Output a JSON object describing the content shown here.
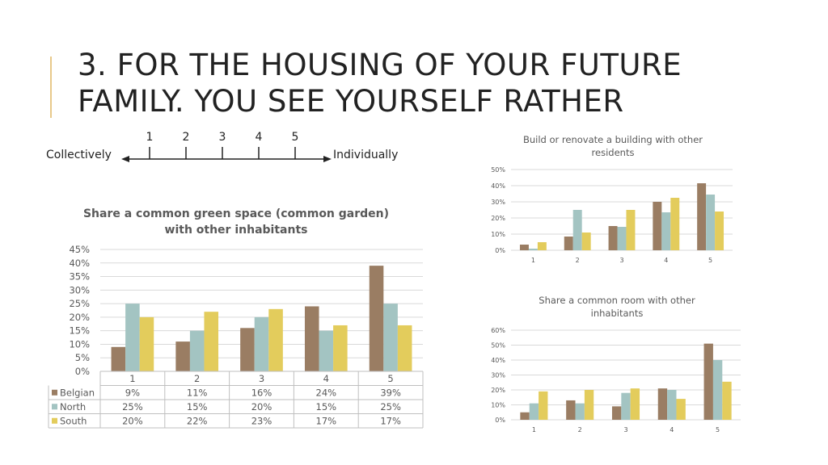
{
  "slide": {
    "title_line1": "3. FOR THE HOUSING OF YOUR FUTURE",
    "title_line2": "FAMILY. YOU SEE YOURSELF RATHER"
  },
  "scale": {
    "left_label": "Collectively",
    "right_label": "Individually",
    "ticks": [
      "1",
      "2",
      "3",
      "4",
      "5"
    ]
  },
  "colors": {
    "Belgian": "#9a7d63",
    "North": "#a3c4c2",
    "South": "#e3cc5c"
  },
  "chart_data": [
    {
      "type": "bar",
      "title": "Share a common green space (common garden) with other inhabitants",
      "title_line1": "Share a common green space (common garden)",
      "title_line2": "with other inhabitants",
      "categories": [
        "1",
        "2",
        "3",
        "4",
        "5"
      ],
      "series": [
        {
          "name": "Belgian",
          "values": [
            9,
            11,
            16,
            24,
            39
          ],
          "labels": [
            "9%",
            "11%",
            "16%",
            "24%",
            "39%"
          ]
        },
        {
          "name": "North",
          "values": [
            25,
            15,
            20,
            15,
            25
          ],
          "labels": [
            "25%",
            "15%",
            "20%",
            "15%",
            "25%"
          ]
        },
        {
          "name": "South",
          "values": [
            20,
            22,
            23,
            17,
            17
          ],
          "labels": [
            "20%",
            "22%",
            "23%",
            "17%",
            "17%"
          ]
        }
      ],
      "ylim": [
        0,
        45
      ],
      "yticks": [
        "0%",
        "5%",
        "10%",
        "15%",
        "20%",
        "25%",
        "30%",
        "35%",
        "40%",
        "45%"
      ],
      "grid": true,
      "legend": "data-table"
    },
    {
      "type": "bar",
      "title": "Build or renovate a building with other residents",
      "title_line1": "Build or renovate a building with other",
      "title_line2": "residents",
      "categories": [
        "1",
        "2",
        "3",
        "4",
        "5"
      ],
      "series": [
        {
          "name": "Belgian",
          "values": [
            3.5,
            8.5,
            15,
            30,
            41.5
          ]
        },
        {
          "name": "North",
          "values": [
            1,
            25,
            14.5,
            23.5,
            34.5
          ]
        },
        {
          "name": "South",
          "values": [
            5,
            11,
            25,
            32.5,
            24
          ]
        }
      ],
      "ylim": [
        0,
        50
      ],
      "yticks": [
        "0%",
        "10%",
        "20%",
        "30%",
        "40%",
        "50%"
      ],
      "grid": true
    },
    {
      "type": "bar",
      "title": "Share a common room with other inhabitants",
      "title_line1": "Share a common room with other",
      "title_line2": "inhabitants",
      "categories": [
        "1",
        "2",
        "3",
        "4",
        "5"
      ],
      "series": [
        {
          "name": "Belgian",
          "values": [
            5,
            13,
            9,
            21,
            51
          ]
        },
        {
          "name": "North",
          "values": [
            11,
            11,
            18,
            20,
            40
          ]
        },
        {
          "name": "South",
          "values": [
            19,
            20,
            21,
            14,
            25.5
          ]
        }
      ],
      "ylim": [
        0,
        60
      ],
      "yticks": [
        "0%",
        "10%",
        "20%",
        "30%",
        "40%",
        "50%",
        "60%"
      ],
      "grid": true
    }
  ]
}
